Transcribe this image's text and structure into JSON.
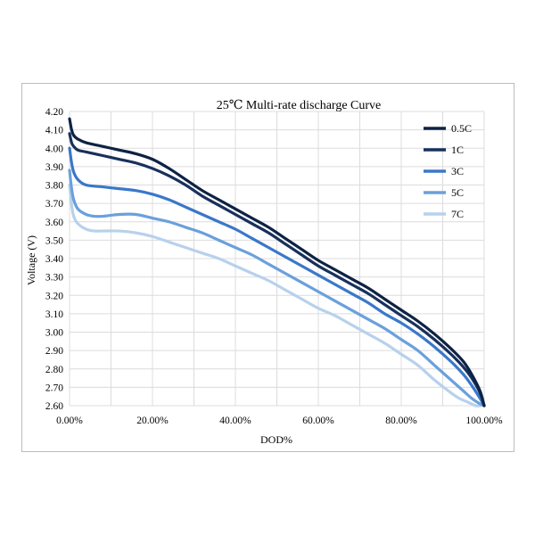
{
  "chart_data": {
    "type": "line",
    "title": "25℃ Multi-rate discharge Curve",
    "xlabel": "DOD%",
    "ylabel": "Voltage (V)",
    "xlim": [
      0,
      100
    ],
    "ylim": [
      2.6,
      4.2
    ],
    "x_ticks": [
      0,
      20,
      40,
      60,
      80,
      100
    ],
    "x_tick_labels": [
      "0.00%",
      "20.00%",
      "40.00%",
      "60.00%",
      "80.00%",
      "100.00%"
    ],
    "y_ticks": [
      2.6,
      2.7,
      2.8,
      2.9,
      3.0,
      3.1,
      3.2,
      3.3,
      3.4,
      3.5,
      3.6,
      3.7,
      3.8,
      3.9,
      4.0,
      4.1,
      4.2
    ],
    "y_tick_labels": [
      "2.60",
      "2.70",
      "2.80",
      "2.90",
      "3.00",
      "3.10",
      "3.20",
      "3.30",
      "3.40",
      "3.50",
      "3.60",
      "3.70",
      "3.80",
      "3.90",
      "4.00",
      "4.10",
      "4.20"
    ],
    "grid": true,
    "legend_position": "top-right",
    "series": [
      {
        "name": "0.5C",
        "color": "#0d2244",
        "x": [
          0,
          0.5,
          1,
          2,
          4,
          8,
          12,
          16,
          20,
          24,
          28,
          32,
          36,
          40,
          44,
          48,
          52,
          56,
          60,
          64,
          68,
          72,
          76,
          80,
          84,
          88,
          92,
          95,
          97,
          99,
          100
        ],
        "y": [
          4.16,
          4.1,
          4.07,
          4.05,
          4.03,
          4.01,
          3.99,
          3.97,
          3.94,
          3.89,
          3.83,
          3.77,
          3.72,
          3.67,
          3.62,
          3.57,
          3.51,
          3.45,
          3.39,
          3.34,
          3.29,
          3.24,
          3.18,
          3.12,
          3.06,
          2.99,
          2.91,
          2.84,
          2.77,
          2.68,
          2.6
        ]
      },
      {
        "name": "1C",
        "color": "#18305c",
        "x": [
          0,
          0.5,
          1,
          2,
          4,
          8,
          12,
          16,
          20,
          24,
          28,
          32,
          36,
          40,
          44,
          48,
          52,
          56,
          60,
          64,
          68,
          72,
          76,
          80,
          84,
          88,
          92,
          95,
          97,
          99,
          100
        ],
        "y": [
          4.08,
          4.03,
          4.01,
          3.99,
          3.98,
          3.96,
          3.94,
          3.92,
          3.89,
          3.85,
          3.8,
          3.74,
          3.69,
          3.64,
          3.59,
          3.54,
          3.48,
          3.42,
          3.36,
          3.31,
          3.26,
          3.21,
          3.15,
          3.09,
          3.03,
          2.96,
          2.88,
          2.81,
          2.75,
          2.67,
          2.6
        ]
      },
      {
        "name": "3C",
        "color": "#3a78c9",
        "x": [
          0,
          0.5,
          1,
          2,
          4,
          8,
          12,
          16,
          20,
          24,
          28,
          32,
          36,
          40,
          44,
          48,
          52,
          56,
          60,
          64,
          68,
          72,
          76,
          80,
          84,
          88,
          92,
          95,
          97,
          99,
          100
        ],
        "y": [
          4.0,
          3.92,
          3.87,
          3.83,
          3.8,
          3.79,
          3.78,
          3.77,
          3.75,
          3.72,
          3.68,
          3.64,
          3.6,
          3.56,
          3.51,
          3.46,
          3.41,
          3.36,
          3.31,
          3.26,
          3.21,
          3.16,
          3.1,
          3.05,
          2.99,
          2.92,
          2.84,
          2.77,
          2.71,
          2.64,
          2.6
        ]
      },
      {
        "name": "5C",
        "color": "#6aa0dc",
        "x": [
          0,
          0.5,
          1,
          2,
          4,
          6,
          8,
          12,
          16,
          20,
          24,
          28,
          32,
          36,
          40,
          44,
          48,
          52,
          56,
          60,
          64,
          68,
          72,
          76,
          80,
          84,
          88,
          92,
          95,
          97,
          99,
          100
        ],
        "y": [
          3.88,
          3.78,
          3.72,
          3.67,
          3.64,
          3.63,
          3.63,
          3.64,
          3.64,
          3.62,
          3.6,
          3.57,
          3.54,
          3.5,
          3.46,
          3.42,
          3.37,
          3.32,
          3.27,
          3.22,
          3.17,
          3.12,
          3.07,
          3.02,
          2.96,
          2.9,
          2.82,
          2.74,
          2.68,
          2.64,
          2.61,
          2.6
        ]
      },
      {
        "name": "7C",
        "color": "#b8d1ec",
        "x": [
          0,
          0.5,
          1,
          2,
          4,
          6,
          8,
          12,
          16,
          20,
          24,
          28,
          32,
          36,
          40,
          44,
          48,
          52,
          56,
          60,
          64,
          68,
          72,
          76,
          80,
          84,
          88,
          92,
          94,
          96,
          98,
          99
        ],
        "y": [
          3.8,
          3.69,
          3.63,
          3.59,
          3.56,
          3.55,
          3.55,
          3.55,
          3.54,
          3.52,
          3.49,
          3.46,
          3.43,
          3.4,
          3.36,
          3.32,
          3.28,
          3.23,
          3.18,
          3.13,
          3.09,
          3.04,
          2.99,
          2.94,
          2.88,
          2.82,
          2.74,
          2.67,
          2.64,
          2.62,
          2.6,
          2.6
        ]
      }
    ]
  }
}
